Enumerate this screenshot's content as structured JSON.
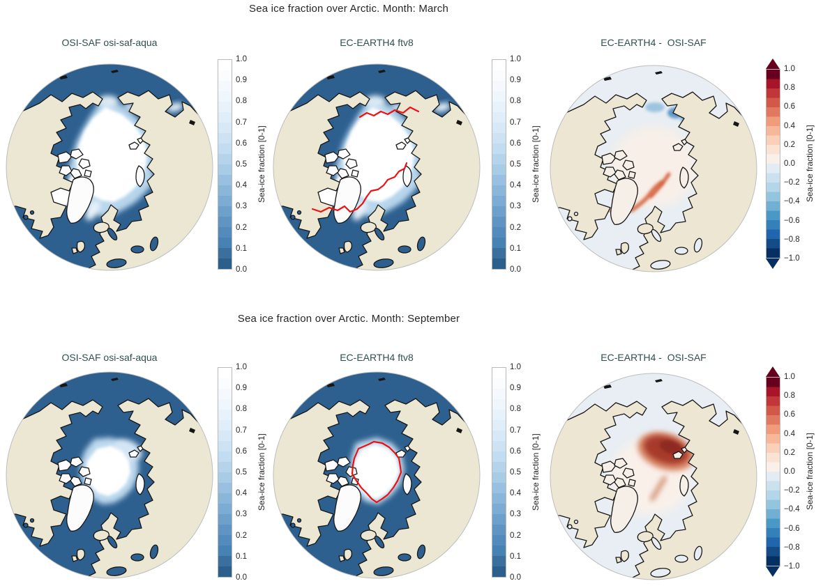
{
  "figure": {
    "kind": "matplotlib-style multi-panel cartographic figure",
    "rows": 2,
    "cols": 3
  },
  "rows": [
    {
      "suptitle": "Sea ice fraction over Arctic. Month: March",
      "panels": [
        {
          "title": "OSI-SAF osi-saf-aqua",
          "colorbar": "blues"
        },
        {
          "title": "EC-EARTH4 ftv8",
          "colorbar": "blues"
        },
        {
          "title": "EC-EARTH4 -  OSI-SAF",
          "colorbar": "rdbu"
        }
      ]
    },
    {
      "suptitle": "Sea ice fraction over Arctic. Month: September",
      "panels": [
        {
          "title": "OSI-SAF osi-saf-aqua",
          "colorbar": "blues"
        },
        {
          "title": "EC-EARTH4 ftv8",
          "colorbar": "blues"
        },
        {
          "title": "EC-EARTH4 -  OSI-SAF",
          "colorbar": "rdbu"
        }
      ]
    }
  ],
  "colorbars": {
    "blues": {
      "label": "Sea-ice fraction [0-1]",
      "ticks": [
        "1.0",
        "0.9",
        "0.8",
        "0.7",
        "0.6",
        "0.5",
        "0.4",
        "0.3",
        "0.2",
        "0.1",
        "0.0"
      ],
      "range": [
        0,
        1
      ],
      "extend": "none",
      "band_colors": [
        "#2d5f8c",
        "#3a6f9e",
        "#4682b4",
        "#528bbc",
        "#5f94c3",
        "#6da0cb",
        "#7cabd3",
        "#8ab6da",
        "#99c0e0",
        "#a8cbe6",
        "#b5d4ec",
        "#c2dcf1",
        "#cde3f4",
        "#d7e9f7",
        "#e0eef9",
        "#e8f2fb",
        "#eff6fc",
        "#f5f9fd",
        "#fafcfe",
        "#ffffff"
      ]
    },
    "rdbu": {
      "label": "Sea-ice fraction [0-1]",
      "ticks": [
        "1.0",
        "0.8",
        "0.6",
        "0.4",
        "0.2",
        "0.0",
        "−0.2",
        "−0.4",
        "−0.6",
        "−0.8",
        "−1.0"
      ],
      "range": [
        -1,
        1
      ],
      "extend": "both",
      "band_colors": [
        "#053061",
        "#144c87",
        "#2166ac",
        "#3480b9",
        "#4a98c5",
        "#71b0d3",
        "#93c6de",
        "#b3d6e8",
        "#cbe2ee",
        "#e2ecf2",
        "#f9f0e9",
        "#fbe3d4",
        "#fbd0b9",
        "#f7b799",
        "#f09c7b",
        "#e17860",
        "#d25849",
        "#c13639",
        "#a81529",
        "#67001f"
      ]
    }
  },
  "colors": {
    "ocean": "#2d608f",
    "land": "#ece7d3",
    "land_ice": "#fcfcfc",
    "land_diff": "#ece6d3",
    "land_ice_diff": "#f6efe8",
    "coast": "#161616",
    "diff_bg": "#e8eef3",
    "contour_red": "#ee1111",
    "title": "#2f4f4f",
    "text": "#262626",
    "circle_edge": "#bdbdbd"
  },
  "chart_data": [
    {
      "type": "heatmap",
      "month": "March",
      "panel": "OSI-SAF osi-saf-aqua",
      "projection": "north polar orthographic",
      "variable": "Sea-ice fraction [0-1]",
      "colormap": "Blues_r, 20 discrete levels",
      "range": [
        0,
        1
      ],
      "features": "Central Arctic fully ice covered (~1.0, white) including Hudson Bay, Baffin Bay, Bering/Chukchi and Okhotsk fringes; open ocean ~0.0 dark blue; land beige with black coastlines"
    },
    {
      "type": "heatmap",
      "month": "March",
      "panel": "EC-EARTH4 ftv8",
      "projection": "north polar orthographic",
      "variable": "Sea-ice fraction [0-1]",
      "colormap": "Blues_r, 20 discrete levels",
      "range": [
        0,
        1
      ],
      "overlay": "red observed (OSI-SAF) ice-edge contour along Bering Sea and Atlantic sector",
      "features": "Simulated ice pack similar to observations; red contour marks observed ice edge"
    },
    {
      "type": "heatmap",
      "month": "March",
      "panel": "EC-EARTH4 -  OSI-SAF",
      "projection": "north polar orthographic",
      "variable": "Sea-ice fraction difference [0-1]",
      "colormap": "RdBu_r, 20 discrete levels, extended both ends",
      "range": [
        -1,
        1
      ],
      "features": "Mostly ~0; positive (red, up to ~+0.5) bands along East Greenland and Labrador ice edges; negative (blue, ~-0.4) patches in Bering/Chukchi seas"
    },
    {
      "type": "heatmap",
      "month": "September",
      "panel": "OSI-SAF osi-saf-aqua",
      "projection": "north polar orthographic",
      "variable": "Sea-ice fraction [0-1]",
      "colormap": "Blues_r, 20 discrete levels",
      "range": [
        0,
        1
      ],
      "features": "Small summer ice cap (~1.0) centered toward Canadian Archipelago/Greenland side; diffuse gradient toward Siberian side; all marginal seas open (~0.0)"
    },
    {
      "type": "heatmap",
      "month": "September",
      "panel": "EC-EARTH4 ftv8",
      "projection": "north polar orthographic",
      "variable": "Sea-ice fraction [0-1]",
      "colormap": "Blues_r, 20 discrete levels",
      "range": [
        0,
        1
      ],
      "overlay": "red observed (OSI-SAF) ice-edge contour encircling the summer ice pack",
      "features": "Simulated September pack slightly larger than observed edge on Siberian side"
    },
    {
      "type": "heatmap",
      "month": "September",
      "panel": "EC-EARTH4 -  OSI-SAF",
      "projection": "north polar orthographic",
      "variable": "Sea-ice fraction difference [0-1]",
      "colormap": "RdBu_r, 20 discrete levels, extended both ends",
      "range": [
        -1,
        1
      ],
      "features": "Strong positive (dark red, up to ~+0.8) region in East Siberian/Laptev sector; weaker positive streaks toward Fram Strait; elsewhere ~0"
    }
  ]
}
